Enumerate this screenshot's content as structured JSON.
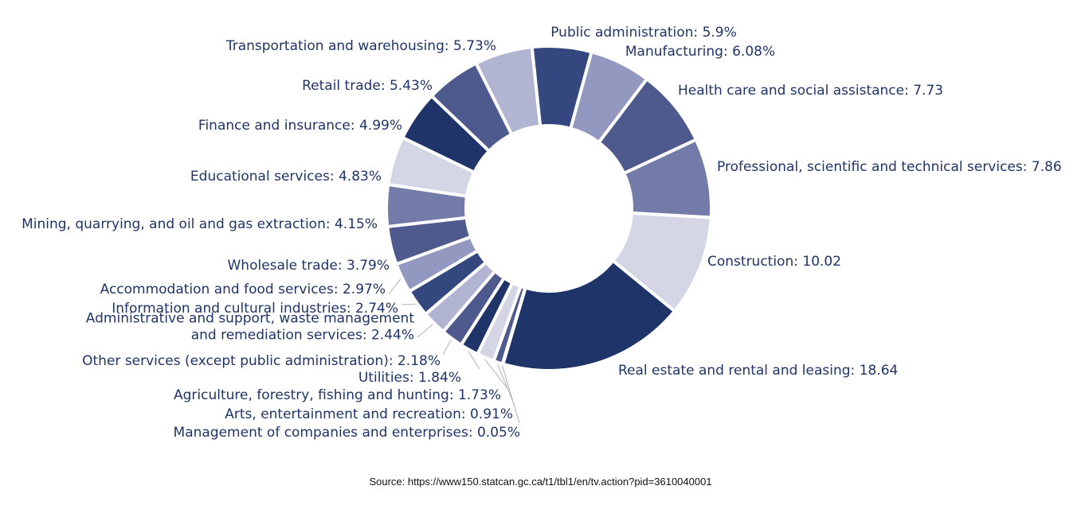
{
  "chart_data": {
    "type": "pie",
    "variant": "donut",
    "start_angle_deg": -6,
    "direction": "clockwise",
    "slices": [
      {
        "label": "Public administration",
        "value": 5.9,
        "display": "Public administration: 5.9%",
        "color": "#34487f"
      },
      {
        "label": "Manufacturing",
        "value": 6.08,
        "display": "Manufacturing: 6.08%",
        "color": "#9298c0"
      },
      {
        "label": "Health care and social assistance",
        "value": 7.73,
        "display": "Health care and social assistance: 7.73",
        "color": "#4e5a8e"
      },
      {
        "label": "Professional, scientific and technical services",
        "value": 7.86,
        "display": "Professional, scientific and technical services: 7.86",
        "color": "#737ca9"
      },
      {
        "label": "Construction",
        "value": 10.02,
        "display": "Construction: 10.02",
        "color": "#d4d6e6"
      },
      {
        "label": "Real estate and rental and leasing",
        "value": 18.64,
        "display": "Real estate and rental and leasing: 18.64",
        "color": "#1f3468"
      },
      {
        "label": "Management of companies and enterprises",
        "value": 0.05,
        "display": "Management of companies and enterprises: 0.05%",
        "color": "#737ca9"
      },
      {
        "label": "Arts, entertainment and recreation",
        "value": 0.91,
        "display": "Arts, entertainment and recreation: 0.91%",
        "color": "#4e5a8e"
      },
      {
        "label": "Agriculture, forestry, fishing and hunting",
        "value": 1.73,
        "display": "Agriculture, forestry, fishing and hunting: 1.73%",
        "color": "#d4d6e6"
      },
      {
        "label": "Utilities",
        "value": 1.84,
        "display": "Utilities: 1.84%",
        "color": "#1f3468"
      },
      {
        "label": "Other services (except public administration)",
        "value": 2.18,
        "display": "Other services (except public administration): 2.18%",
        "color": "#4e5a8e"
      },
      {
        "label": "Administrative and support, waste management and remediation services",
        "value": 2.44,
        "display": "Administrative and support, waste management\nand remediation services: 2.44%",
        "color": "#b2b5d2"
      },
      {
        "label": "Information and cultural industries",
        "value": 2.74,
        "display": "Information and cultural industries: 2.74%",
        "color": "#34487f"
      },
      {
        "label": "Accommodation and food services",
        "value": 2.97,
        "display": "Accommodation and food services: 2.97%",
        "color": "#9298c0"
      },
      {
        "label": "Wholesale trade",
        "value": 3.79,
        "display": "Wholesale trade: 3.79%",
        "color": "#4e5a8e"
      },
      {
        "label": "Mining, quarrying, and oil and gas extraction",
        "value": 4.15,
        "display": "Mining, quarrying, and oil and gas extraction: 4.15%",
        "color": "#737ca9"
      },
      {
        "label": "Educational services",
        "value": 4.83,
        "display": "Educational services: 4.83%",
        "color": "#d4d6e6"
      },
      {
        "label": "Finance and insurance",
        "value": 4.99,
        "display": "Finance and insurance: 4.99%",
        "color": "#1f3468"
      },
      {
        "label": "Retail trade",
        "value": 5.43,
        "display": "Retail trade: 5.43%",
        "color": "#4e5a8e"
      },
      {
        "label": "Transportation and warehousing",
        "value": 5.73,
        "display": "Transportation and warehousing: 5.73%",
        "color": "#b2b5d2"
      }
    ],
    "label_color": "#1f3468",
    "leader_line_color": "#b0b0b0"
  },
  "source": {
    "text": "Source: https://www150.statcan.gc.ca/t1/tbl1/en/tv.action?pid=3610040001"
  }
}
